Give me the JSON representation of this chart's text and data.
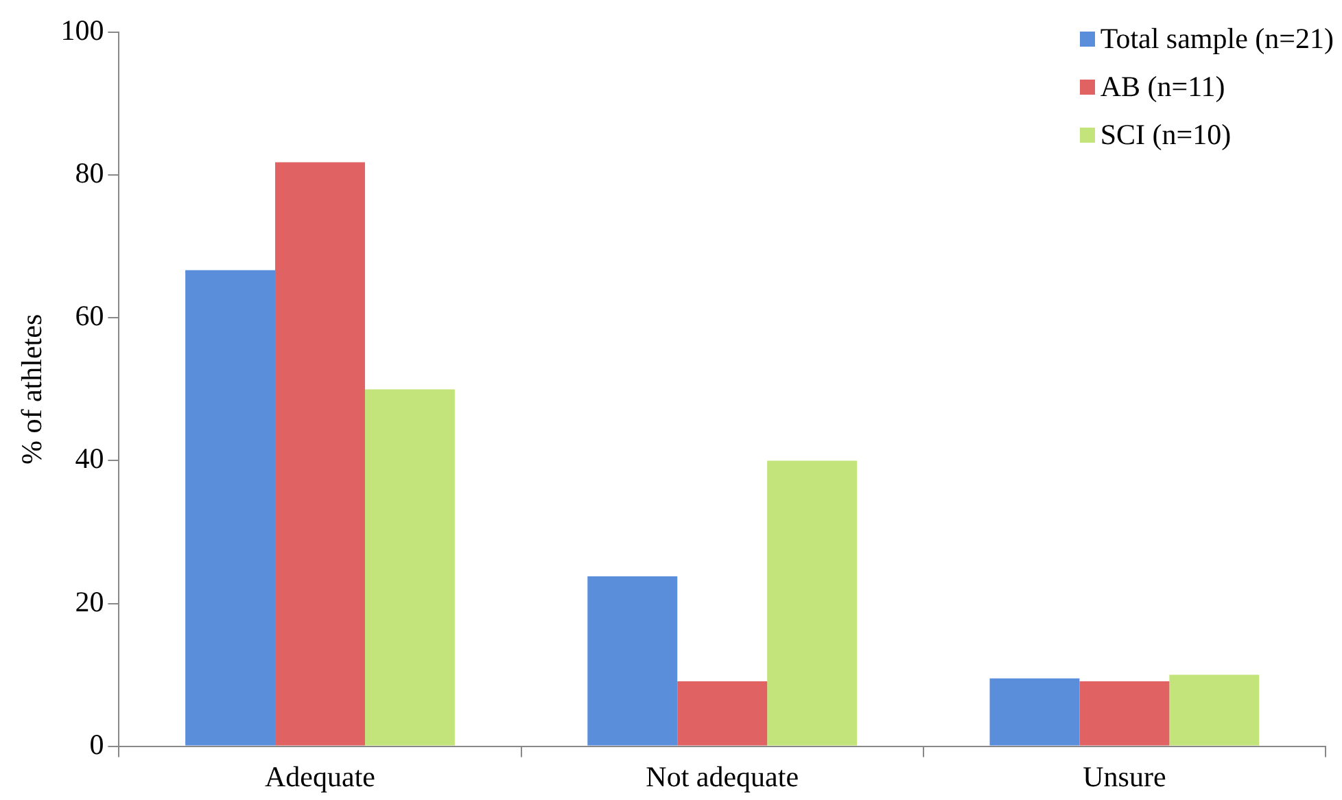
{
  "chart_data": {
    "type": "bar",
    "ylabel": "% of athletes",
    "categories": [
      "Adequate",
      "Not adequate",
      "Unsure"
    ],
    "series": [
      {
        "name": "Total sample (n=21)",
        "color": "#5a8edb",
        "values": [
          66.7,
          23.8,
          9.5
        ]
      },
      {
        "name": "AB (n=11)",
        "color": "#e06262",
        "values": [
          81.8,
          9.1,
          9.1
        ]
      },
      {
        "name": "SCI (n=10)",
        "color": "#c3e47a",
        "values": [
          50,
          40,
          10
        ]
      }
    ],
    "ylim": [
      0,
      100
    ],
    "yticks": [
      0,
      20,
      40,
      60,
      80,
      100
    ],
    "grid": false,
    "legend": "top right"
  }
}
